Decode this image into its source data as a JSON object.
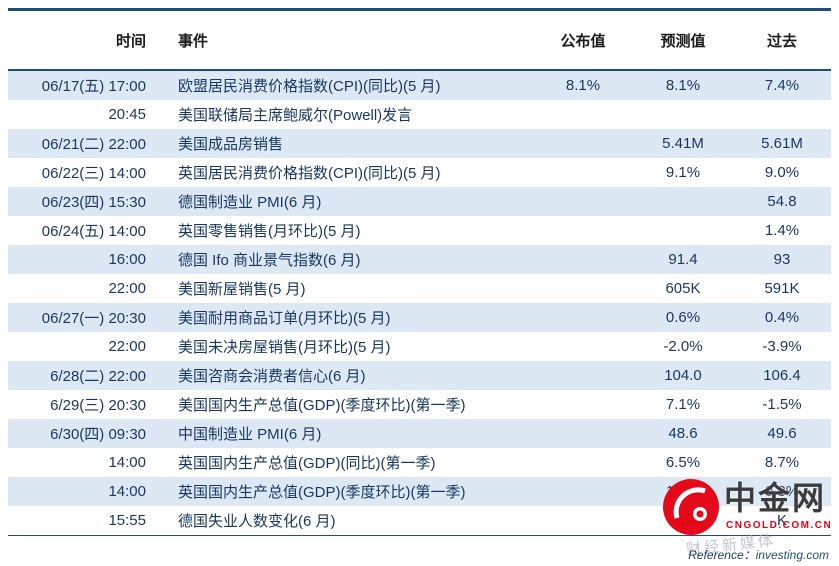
{
  "table": {
    "columns": {
      "time": "时间",
      "event": "事件",
      "announced": "公布值",
      "forecast": "预测值",
      "past": "过去"
    },
    "rows": [
      {
        "time": "06/17(五) 17:00",
        "event": "欧盟居民消费价格指数(CPI)(同比)(5 月)",
        "announced": "8.1%",
        "forecast": "8.1%",
        "past": "7.4%"
      },
      {
        "time": "20:45",
        "event": "美国联储局主席鲍威尔(Powell)发言",
        "announced": "",
        "forecast": "",
        "past": ""
      },
      {
        "time": "06/21(二) 22:00",
        "event": "美国成品房销售",
        "announced": "",
        "forecast": "5.41M",
        "past": "5.61M"
      },
      {
        "time": "06/22(三) 14:00",
        "event": "英国居民消费价格指数(CPI)(同比)(5 月)",
        "announced": "",
        "forecast": "9.1%",
        "past": "9.0%"
      },
      {
        "time": "06/23(四) 15:30",
        "event": "德国制造业 PMI(6 月)",
        "announced": "",
        "forecast": "",
        "past": "54.8"
      },
      {
        "time": "06/24(五) 14:00",
        "event": "英国零售销售(月环比)(5 月)",
        "announced": "",
        "forecast": "",
        "past": "1.4%"
      },
      {
        "time": "16:00",
        "event": "德国 Ifo 商业景气指数(6 月)",
        "announced": "",
        "forecast": "91.4",
        "past": "93"
      },
      {
        "time": "22:00",
        "event": "美国新屋销售(5 月)",
        "announced": "",
        "forecast": "605K",
        "past": "591K"
      },
      {
        "time": "06/27(一) 20:30",
        "event": "美国耐用商品订单(月环比)(5 月)",
        "announced": "",
        "forecast": "0.6%",
        "past": "0.4%"
      },
      {
        "time": "22:00",
        "event": "美国未决房屋销售(月环比)(5 月)",
        "announced": "",
        "forecast": "-2.0%",
        "past": "-3.9%"
      },
      {
        "time": "6/28(二) 22:00",
        "event": "美国咨商会消费者信心(6 月)",
        "announced": "",
        "forecast": "104.0",
        "past": "106.4"
      },
      {
        "time": "6/29(三) 20:30",
        "event": "美国国内生产总值(GDP)(季度环比)(第一季)",
        "announced": "",
        "forecast": "7.1%",
        "past": "-1.5%"
      },
      {
        "time": "6/30(四) 09:30",
        "event": "中国制造业 PMI(6 月)",
        "announced": "",
        "forecast": "48.6",
        "past": "49.6"
      },
      {
        "time": "14:00",
        "event": "英国国内生产总值(GDP)(同比)(第一季)",
        "announced": "",
        "forecast": "6.5%",
        "past": "8.7%"
      },
      {
        "time": "14:00",
        "event": "英国国内生产总值(GDP)(季度环比)(第一季)",
        "announced": "",
        "forecast": "1.0%",
        "past": "0.8%"
      },
      {
        "time": "15:55",
        "event": "德国失业人数变化(6 月)",
        "announced": "",
        "forecast": "-15",
        "past": "K"
      }
    ]
  },
  "footer": {
    "reference_label": "Reference：",
    "reference_link": "investing.com"
  },
  "watermark": {
    "name": "中金网",
    "domain": "CNGOLD.COM.CN",
    "tagline": "财经新媒体"
  },
  "colors": {
    "border_blue": "#1F4E79",
    "stripe_blue": "#DCE9F5",
    "text_navy": "#17375E",
    "brand_red": "#E60012"
  }
}
